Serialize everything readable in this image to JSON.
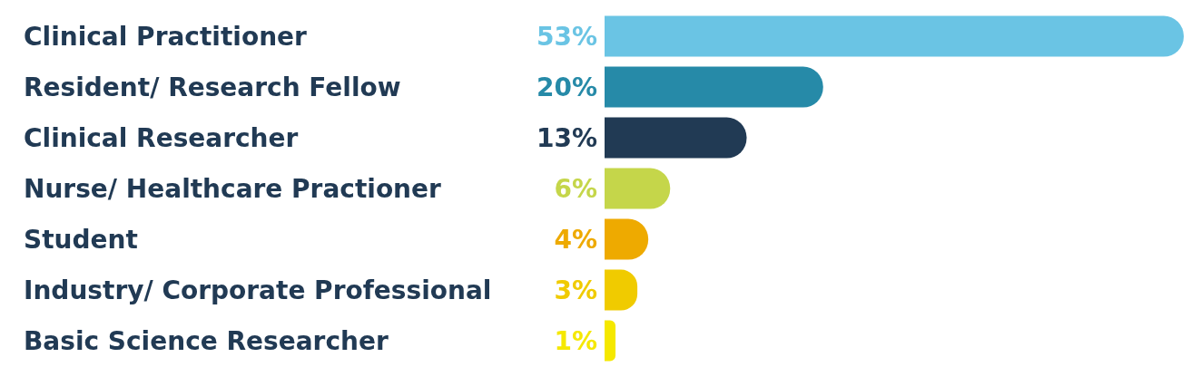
{
  "chart_data": {
    "type": "bar",
    "orientation": "horizontal",
    "categories": [
      "Clinical Practitioner",
      "Resident/ Research Fellow",
      "Clinical Researcher",
      "Nurse/ Healthcare Practioner",
      "Student",
      "Industry/ Corporate Professional",
      "Basic Science Researcher"
    ],
    "values": [
      53,
      20,
      13,
      6,
      4,
      3,
      1
    ],
    "value_labels": [
      "53%",
      "20%",
      "13%",
      "6%",
      "4%",
      "3%",
      "1%"
    ],
    "colors": [
      "#6ac4e4",
      "#268aa8",
      "#213a54",
      "#c5d64a",
      "#eeaa00",
      "#f0cb00",
      "#f5e800"
    ]
  }
}
